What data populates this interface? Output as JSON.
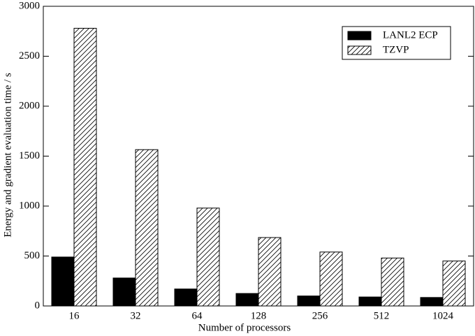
{
  "chart_data": {
    "type": "bar",
    "x_label": "Number of processors",
    "y_label": "Energy and gradient evaluation time / s",
    "categories": [
      "16",
      "32",
      "64",
      "128",
      "256",
      "512",
      "1024"
    ],
    "series": [
      {
        "name": "LANL2 ECP",
        "color": "#000000",
        "values": [
          490,
          280,
          170,
          125,
          100,
          90,
          85
        ]
      },
      {
        "name": "TZVP",
        "color": "#ffffff",
        "hatch": true,
        "values": [
          2780,
          1565,
          980,
          685,
          540,
          480,
          450
        ]
      }
    ],
    "ylim": [
      0,
      3000
    ],
    "yticks": [
      0,
      500,
      1000,
      1500,
      2000,
      2500,
      3000
    ],
    "legend": "upper right"
  }
}
